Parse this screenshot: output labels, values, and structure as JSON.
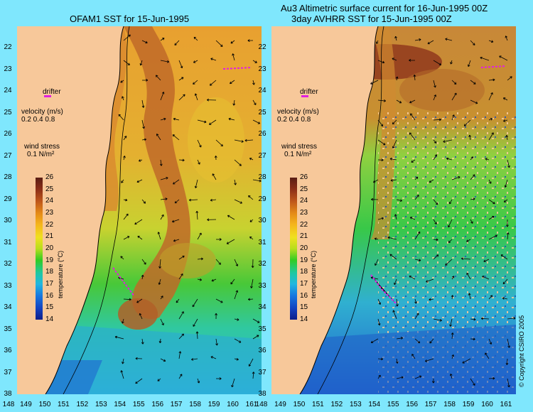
{
  "left_panel": {
    "title": "OFAM1 SST for 15-Jun-1995",
    "legend": {
      "drifter": "drifter",
      "velocity_label": "velocity (m/s)",
      "velocity_scale": "0.2 0.4 0.8",
      "wind_label": "wind stress",
      "wind_scale": "0.1 N/m²"
    }
  },
  "right_panel": {
    "title_line1": "Au3 Altimetric surface current for 16-Jun-1995 00Z",
    "title_line2": "3day AVHRR SST for 15-Jun-1995 00Z",
    "legend": {
      "drifter": "drifter",
      "velocity_label": "velocity (m/s)",
      "velocity_scale": "0.2 0.4 0.8",
      "wind_label": "wind stress",
      "wind_scale": "0.1 N/m²"
    },
    "copyright": "© Copyright CSIRO 2005"
  },
  "colorbar": {
    "label": "temperature (°C)",
    "ticks": [
      "26",
      "25",
      "24",
      "23",
      "22",
      "21",
      "20",
      "19",
      "18",
      "17",
      "16",
      "15",
      "14"
    ]
  },
  "axes": {
    "y_labels": [
      "22",
      "23",
      "24",
      "25",
      "26",
      "27",
      "28",
      "29",
      "30",
      "31",
      "32",
      "33",
      "34",
      "35",
      "36",
      "37",
      "38"
    ],
    "x_labels": [
      "148",
      "149",
      "150",
      "151",
      "152",
      "153",
      "154",
      "155",
      "156",
      "157",
      "158",
      "159",
      "160",
      "161"
    ]
  },
  "colors": {
    "land": "#f7c89a",
    "background": "#7fe7fd",
    "drifter": "#e020e0",
    "warm_core": "#b5622a",
    "warm": "#e8a830",
    "mid": "#d8d830",
    "cool": "#30c830",
    "cold": "#2080e0"
  }
}
